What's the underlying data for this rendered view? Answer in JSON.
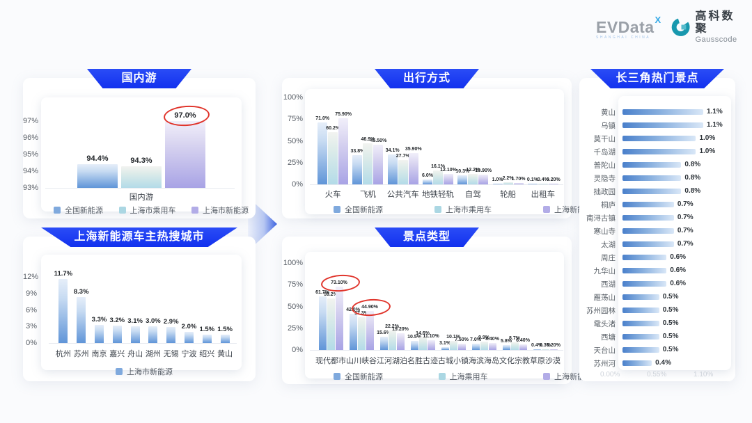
{
  "brand": {
    "evdata": {
      "name": "EVData",
      "superscript": "X",
      "subtitle": "SHANGHAI CHINA",
      "name_color": "#9aa0a8",
      "accent_color": "#34a9e6"
    },
    "gausscode": {
      "name_cn": "高科数聚",
      "name_en": "Gausscode",
      "mark_color": "#1898ae"
    }
  },
  "colors": {
    "badge_blue": "#1a3af0",
    "highlight_red": "#e0342b",
    "series": [
      "#7FA9DD",
      "#ABD7E3",
      "#B2ACE7"
    ],
    "hbar_blue": "#4a80cb"
  },
  "arrow_icon": {
    "name": "right-chevron-arrow",
    "color_from": "#eef2fc",
    "color_to": "#3d63e0"
  },
  "chart_data": [
    {
      "id": "domestic-travel",
      "type": "bar",
      "title": "国内游",
      "categories": [
        "国内游"
      ],
      "series": [
        {
          "name": "全国新能源",
          "values": [
            94.4
          ],
          "labels": [
            "94.4%"
          ]
        },
        {
          "name": "上海市乘用车",
          "values": [
            94.3
          ],
          "labels": [
            "94.3%"
          ]
        },
        {
          "name": "上海市新能源",
          "values": [
            97.0
          ],
          "labels": [
            "97.0%"
          ]
        }
      ],
      "yticks": [
        "93%",
        "94%",
        "95%",
        "96%",
        "97%"
      ],
      "ylim": [
        93,
        97.6
      ],
      "legend_position": "bottom",
      "highlights": [
        {
          "s": 2,
          "c": 0
        }
      ]
    },
    {
      "id": "shanghai-ev-hot-cities",
      "type": "bar",
      "title": "上海新能源车主热搜城市",
      "categories": [
        "杭州",
        "苏州",
        "南京",
        "嘉兴",
        "舟山",
        "湖州",
        "无锡",
        "宁波",
        "绍兴",
        "黄山"
      ],
      "series": [
        {
          "name": "上海市新能源",
          "values": [
            11.7,
            8.3,
            3.3,
            3.2,
            3.1,
            3.0,
            2.9,
            2.0,
            1.5,
            1.5
          ],
          "labels": [
            "11.7%",
            "8.3%",
            "3.3%",
            "3.2%",
            "3.1%",
            "3.0%",
            "2.9%",
            "2.0%",
            "1.5%",
            "1.5%"
          ]
        }
      ],
      "yticks": [
        "0%",
        "3%",
        "6%",
        "9%",
        "12%"
      ],
      "ylim": [
        0,
        13.5
      ],
      "legend_position": "bottom",
      "highlights": []
    },
    {
      "id": "travel-modes",
      "type": "bar",
      "title": "出行方式",
      "categories": [
        "火车",
        "飞机",
        "公共汽车",
        "地铁轻轨",
        "自驾",
        "轮船",
        "出租车"
      ],
      "series": [
        {
          "name": "全国新能源",
          "values": [
            71.0,
            33.8,
            34.1,
            6.0,
            10.3,
            1.0,
            0.1
          ],
          "labels": [
            "71.0%",
            "33.8%",
            "34.1%",
            "6.0%",
            "10.3%",
            "1.0%",
            "0.1%"
          ]
        },
        {
          "name": "上海市乘用车",
          "values": [
            60.2,
            46.9,
            27.7,
            16.1,
            12.2,
            2.2,
            0.4
          ],
          "labels": [
            "60.2%",
            "46.9%",
            "27.7%",
            "16.1%",
            "12.2%",
            "2.2%",
            "0.4%"
          ]
        },
        {
          "name": "上海新能源",
          "values": [
            75.9,
            45.5,
            35.9,
            12.1,
            10.9,
            1.7,
            0.2
          ],
          "labels": [
            "75.90%",
            "45.50%",
            "35.90%",
            "12.10%",
            "10.90%",
            "1.70%",
            "0.20%"
          ]
        }
      ],
      "yticks": [
        "0%",
        "25%",
        "50%",
        "75%",
        "100%"
      ],
      "ylim": [
        0,
        105
      ],
      "legend_position": "bottom",
      "highlights": []
    },
    {
      "id": "attraction-types",
      "type": "bar",
      "title": "景点类型",
      "categories": [
        "现代都市",
        "山川峡谷",
        "江河湖泊",
        "名胜古迹",
        "古城小镇",
        "海滨海岛",
        "文化宗教",
        "草原沙漠"
      ],
      "series": [
        {
          "name": "全国新能源",
          "values": [
            61.7,
            42.0,
            15.6,
            10.5,
            3.1,
            7.0,
            5.8,
            0.4
          ],
          "labels": [
            "61.7%",
            "42.0%",
            "15.6%",
            "10.5%",
            "3.1%",
            "7.0%",
            "5.8%",
            "0.4%"
          ]
        },
        {
          "name": "上海乘用车",
          "values": [
            59.2,
            37.3,
            22.2,
            14.6,
            10.1,
            9.9,
            8.7,
            0.3
          ],
          "labels": [
            "59.2%",
            "37.3%",
            "22.2%",
            "14.6%",
            "10.1%",
            "9.9%",
            "8.7%",
            "0.3%"
          ]
        },
        {
          "name": "上海新能源",
          "values": [
            73.1,
            44.9,
            19.2,
            11.1,
            7.5,
            8.4,
            6.4,
            0.2
          ],
          "labels": [
            "73.10%",
            "44.90%",
            "19.20%",
            "11.10%",
            "7.50%",
            "8.40%",
            "6.40%",
            "0.20%"
          ]
        }
      ],
      "yticks": [
        "0%",
        "25%",
        "50%",
        "75%",
        "100%"
      ],
      "ylim": [
        0,
        105
      ],
      "legend_position": "bottom",
      "highlights": [
        {
          "s": 2,
          "c": 0
        },
        {
          "s": 2,
          "c": 1
        }
      ]
    },
    {
      "id": "yangtze-delta-hot-spots",
      "type": "bar-horizontal",
      "title": "长三角热门景点",
      "categories": [
        "黄山",
        "乌镇",
        "莫干山",
        "千岛湖",
        "普陀山",
        "灵隐寺",
        "拙政园",
        "桐庐",
        "南浔古镇",
        "寒山寺",
        "太湖",
        "周庄",
        "九华山",
        "西湖",
        "雁荡山",
        "苏州园林",
        "鼋头渚",
        "西塘",
        "天台山",
        "苏州河"
      ],
      "values": [
        1.1,
        1.1,
        1.0,
        1.0,
        0.8,
        0.8,
        0.8,
        0.7,
        0.7,
        0.7,
        0.7,
        0.6,
        0.6,
        0.6,
        0.5,
        0.5,
        0.5,
        0.5,
        0.5,
        0.4
      ],
      "labels": [
        "1.1%",
        "1.1%",
        "1.0%",
        "1.0%",
        "0.8%",
        "0.8%",
        "0.8%",
        "0.7%",
        "0.7%",
        "0.7%",
        "0.7%",
        "0.6%",
        "0.6%",
        "0.6%",
        "0.5%",
        "0.5%",
        "0.5%",
        "0.5%",
        "0.5%",
        "0.4%"
      ],
      "xlim": [
        0,
        1.1
      ],
      "axis_ghost_ticks": [
        "0.00%",
        "0.55%",
        "1.10%"
      ]
    }
  ]
}
